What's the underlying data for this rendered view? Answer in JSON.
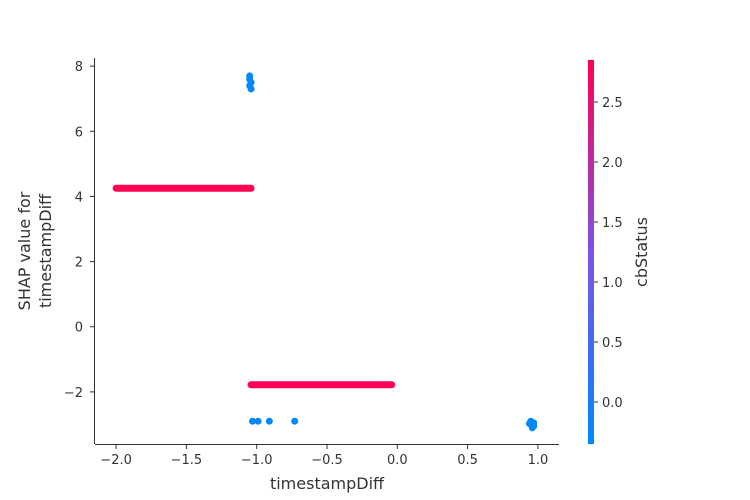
{
  "chart_data": {
    "type": "scatter",
    "title": "",
    "xlabel": "timestampDiff",
    "ylabel_lines": [
      "SHAP value for",
      "timestampDiff"
    ],
    "xlim": [
      -2.15,
      1.15
    ],
    "ylim": [
      -3.6,
      8.25
    ],
    "xticks": [
      -2.0,
      -1.5,
      -1.0,
      -0.5,
      0.0,
      0.5,
      1.0
    ],
    "xtick_labels": [
      "−2.0",
      "−1.5",
      "−1.0",
      "−0.5",
      "0.0",
      "0.5",
      "1.0"
    ],
    "yticks": [
      -2,
      0,
      2,
      4,
      6,
      8
    ],
    "ytick_labels": [
      "−2",
      "0",
      "2",
      "4",
      "6",
      "8"
    ],
    "grid": false,
    "colorbar": {
      "label": "cbStatus",
      "range": [
        -0.35,
        2.85
      ],
      "ticks": [
        0.0,
        0.5,
        1.0,
        1.5,
        2.0,
        2.5
      ],
      "tick_labels": [
        "0.0",
        "0.5",
        "1.0",
        "1.5",
        "2.0",
        "2.5"
      ],
      "color_low": "#008afb",
      "color_mid": "#7c52e6",
      "color_high": "#ff0052"
    },
    "series": [
      {
        "color_value": 2.85,
        "segments": [
          {
            "x_start": -2.0,
            "x_end": -1.04,
            "y": 4.25
          },
          {
            "x_start": -1.04,
            "x_end": -0.04,
            "y": -1.78
          }
        ],
        "points": []
      },
      {
        "color_value": -0.3,
        "segments": [],
        "points": [
          {
            "x": -1.05,
            "y": 7.7
          },
          {
            "x": -1.05,
            "y": 7.6
          },
          {
            "x": -1.04,
            "y": 7.5
          },
          {
            "x": -1.05,
            "y": 7.4
          },
          {
            "x": -1.04,
            "y": 7.3
          },
          {
            "x": -1.03,
            "y": -2.9
          },
          {
            "x": -0.99,
            "y": -2.9
          },
          {
            "x": -0.91,
            "y": -2.9
          },
          {
            "x": -0.73,
            "y": -2.9
          },
          {
            "x": 0.95,
            "y": -2.9
          },
          {
            "x": 0.97,
            "y": -2.95
          },
          {
            "x": 0.95,
            "y": -3.0
          },
          {
            "x": 0.97,
            "y": -3.05
          },
          {
            "x": 0.96,
            "y": -3.1
          },
          {
            "x": 0.94,
            "y": -2.97
          }
        ]
      }
    ]
  }
}
